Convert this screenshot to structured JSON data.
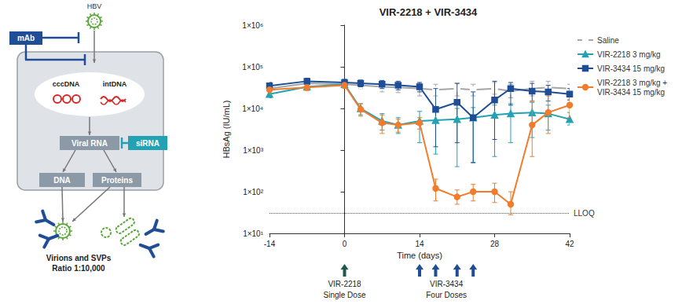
{
  "chart_data": {
    "type": "line",
    "title": "VIR-2218 + VIR-3434",
    "x_label": "Time (days)",
    "y_label": "HBsAg (IU/mL)",
    "log": "y",
    "grid": false,
    "legend": "upper right",
    "xlim": [
      -14,
      42
    ],
    "xticks": [
      -14,
      0,
      14,
      28,
      42
    ],
    "ylim": [
      10,
      1000000
    ],
    "yticks": [
      {
        "value": 10,
        "label": "1×10¹"
      },
      {
        "value": 100,
        "label": "1×10²"
      },
      {
        "value": 1000,
        "label": "1×10³"
      },
      {
        "value": 10000,
        "label": "1×10⁴"
      },
      {
        "value": 100000,
        "label": "1×10⁵"
      },
      {
        "value": 1000000,
        "label": "1×10⁶"
      }
    ],
    "x": [
      -14,
      -7,
      0,
      3,
      7,
      10,
      14,
      17,
      21,
      24,
      28,
      31,
      35,
      38,
      42
    ],
    "series": [
      {
        "name": "Saline",
        "color": "#a6a6a6",
        "marker": "circle-open",
        "values": [
          30000,
          40000,
          38000,
          36000,
          33000,
          32000,
          30000,
          28000,
          30000,
          28000,
          30000,
          26000,
          30000,
          32000,
          30000
        ],
        "error_low": [
          25000,
          33000,
          31000,
          30000,
          25000,
          24000,
          20000,
          20000,
          20000,
          20000,
          22000,
          18000,
          20000,
          22000,
          24000
        ],
        "error_high": [
          36000,
          48000,
          45000,
          43000,
          42000,
          40000,
          40000,
          38000,
          40000,
          38000,
          42000,
          38000,
          45000,
          45000,
          38000
        ]
      },
      {
        "name": "VIR-2218 3 mg/kg",
        "color": "#23a2b5",
        "marker": "triangle",
        "values": [
          22000,
          33000,
          38000,
          10000,
          5000,
          4000,
          5000,
          5200,
          5500,
          6000,
          7000,
          7500,
          8000,
          7500,
          5500
        ],
        "error_low": [
          18000,
          28000,
          32000,
          7000,
          3000,
          2500,
          1500,
          800,
          400,
          500,
          700,
          1500,
          2000,
          3000,
          4000
        ],
        "error_high": [
          27000,
          38000,
          45000,
          13000,
          7500,
          6000,
          8500,
          9500,
          10000,
          10500,
          12000,
          13000,
          14000,
          12000,
          8000
        ]
      },
      {
        "name": "VIR-3434 15 mg/kg",
        "color": "#1f4e96",
        "marker": "square",
        "values": [
          35000,
          45000,
          42000,
          40000,
          38000,
          36000,
          33000,
          9500,
          14000,
          6000,
          16000,
          30000,
          26000,
          25000,
          22000
        ],
        "error_low": [
          28000,
          38000,
          35000,
          33000,
          30000,
          28000,
          25000,
          1200,
          1500,
          500,
          1800,
          12000,
          15000,
          15000,
          16000
        ],
        "error_high": [
          42000,
          53000,
          50000,
          48000,
          47000,
          45000,
          42000,
          30000,
          40000,
          25000,
          45000,
          42000,
          40000,
          36000,
          30000
        ]
      },
      {
        "name": "VIR-2218 3 mg/kg + VIR-3434 15 mg/kg",
        "color": "#f07c2c",
        "marker": "circle",
        "values": [
          28000,
          32000,
          36000,
          9500,
          4500,
          4000,
          4500,
          120,
          75,
          100,
          100,
          50,
          4000,
          8000,
          12000
        ],
        "error_low": [
          22000,
          27000,
          30000,
          6500,
          2500,
          2700,
          3200,
          60,
          50,
          60,
          55,
          28,
          700,
          2500,
          6000
        ],
        "error_high": [
          34000,
          38000,
          43000,
          13000,
          7000,
          5500,
          6000,
          200,
          110,
          150,
          160,
          100,
          15000,
          20000,
          20000
        ]
      }
    ],
    "reference_lines": [
      {
        "value": 30,
        "label": "LLOQ"
      }
    ],
    "doses": [
      {
        "label": "VIR-2218",
        "sublabel": "Single Dose",
        "days": [
          0
        ],
        "color": "#1e5a4c"
      },
      {
        "label": "VIR-3434",
        "sublabel": "Four Doses",
        "days": [
          14,
          17,
          21,
          24
        ],
        "color": "#1f4e96"
      }
    ]
  },
  "diagram": {
    "antibody": "mAb",
    "virus": "HBV",
    "nucleus": [
      "cccDNA",
      "intDNA"
    ],
    "rna": "Viral RNA",
    "inhibitor": "siRNA",
    "products": [
      "DNA",
      "Proteins"
    ],
    "caption": [
      "Virions and SVPs",
      "Ratio 1:10,000"
    ]
  }
}
